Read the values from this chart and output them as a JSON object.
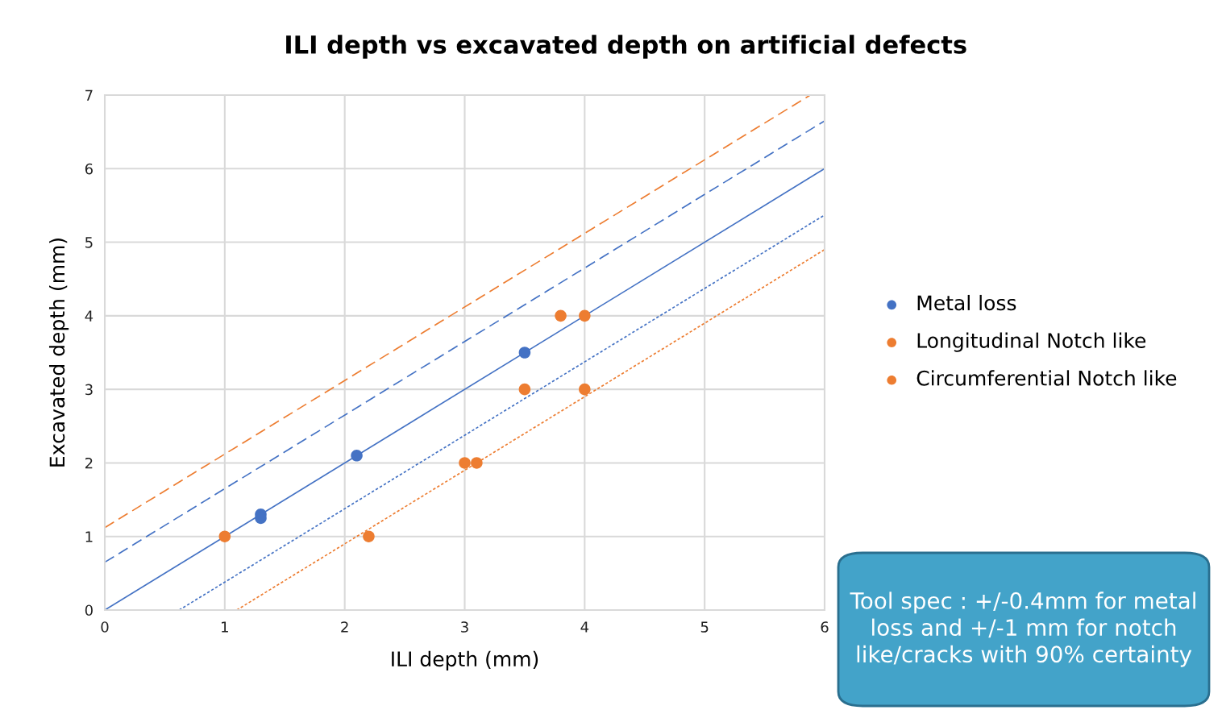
{
  "chart_data": {
    "type": "scatter",
    "title": "ILI depth vs excavated depth on artificial defects",
    "xlabel": "ILI depth (mm)",
    "ylabel": "Excavated depth (mm)",
    "xlim": [
      0,
      6
    ],
    "ylim": [
      0,
      7
    ],
    "xticks": [
      0,
      1,
      2,
      3,
      4,
      5,
      6
    ],
    "yticks": [
      0,
      1,
      2,
      3,
      4,
      5,
      6,
      7
    ],
    "grid": true,
    "legend": "right",
    "annotations": [
      "Tool spec : +/-0.4mm for metal loss and +/-1 mm for notch like/cracks with 90% certainty"
    ],
    "series": [
      {
        "type": "line",
        "color": "#4472c4",
        "line_style": "solid",
        "x": [
          0,
          6
        ],
        "values": [
          0,
          6
        ]
      },
      {
        "type": "line",
        "color": "#4472c4",
        "line_style": "dashed",
        "x": [
          0,
          6
        ],
        "values": [
          0.65,
          6.65
        ]
      },
      {
        "type": "line",
        "color": "#4472c4",
        "line_style": "dotted",
        "x": [
          0.62,
          6
        ],
        "values": [
          0,
          5.37
        ]
      },
      {
        "type": "line",
        "color": "#ed7d31",
        "line_style": "dashed",
        "x": [
          0,
          5.88
        ],
        "values": [
          1.12,
          7
        ]
      },
      {
        "type": "line",
        "color": "#ed7d31",
        "line_style": "dotted",
        "x": [
          1.1,
          6
        ],
        "values": [
          0,
          4.9
        ]
      },
      {
        "marker": "circle",
        "name": "Metal loss",
        "color": "#4472c4",
        "x": [
          1.3,
          1.3,
          2.1,
          3.5
        ],
        "values": [
          1.3,
          1.25,
          2.1,
          3.5
        ]
      },
      {
        "marker": "circle",
        "name": "Longitudinal Notch like",
        "color": "#ed7d31",
        "x": [
          1,
          3,
          3.8,
          4
        ],
        "values": [
          1,
          2,
          4,
          3
        ]
      },
      {
        "marker": "circle",
        "name": "Circumferential Notch like",
        "color": "#ed7d31",
        "x": [
          2.2,
          3.1,
          3.5,
          4
        ],
        "values": [
          1,
          2,
          3,
          4
        ]
      }
    ]
  }
}
